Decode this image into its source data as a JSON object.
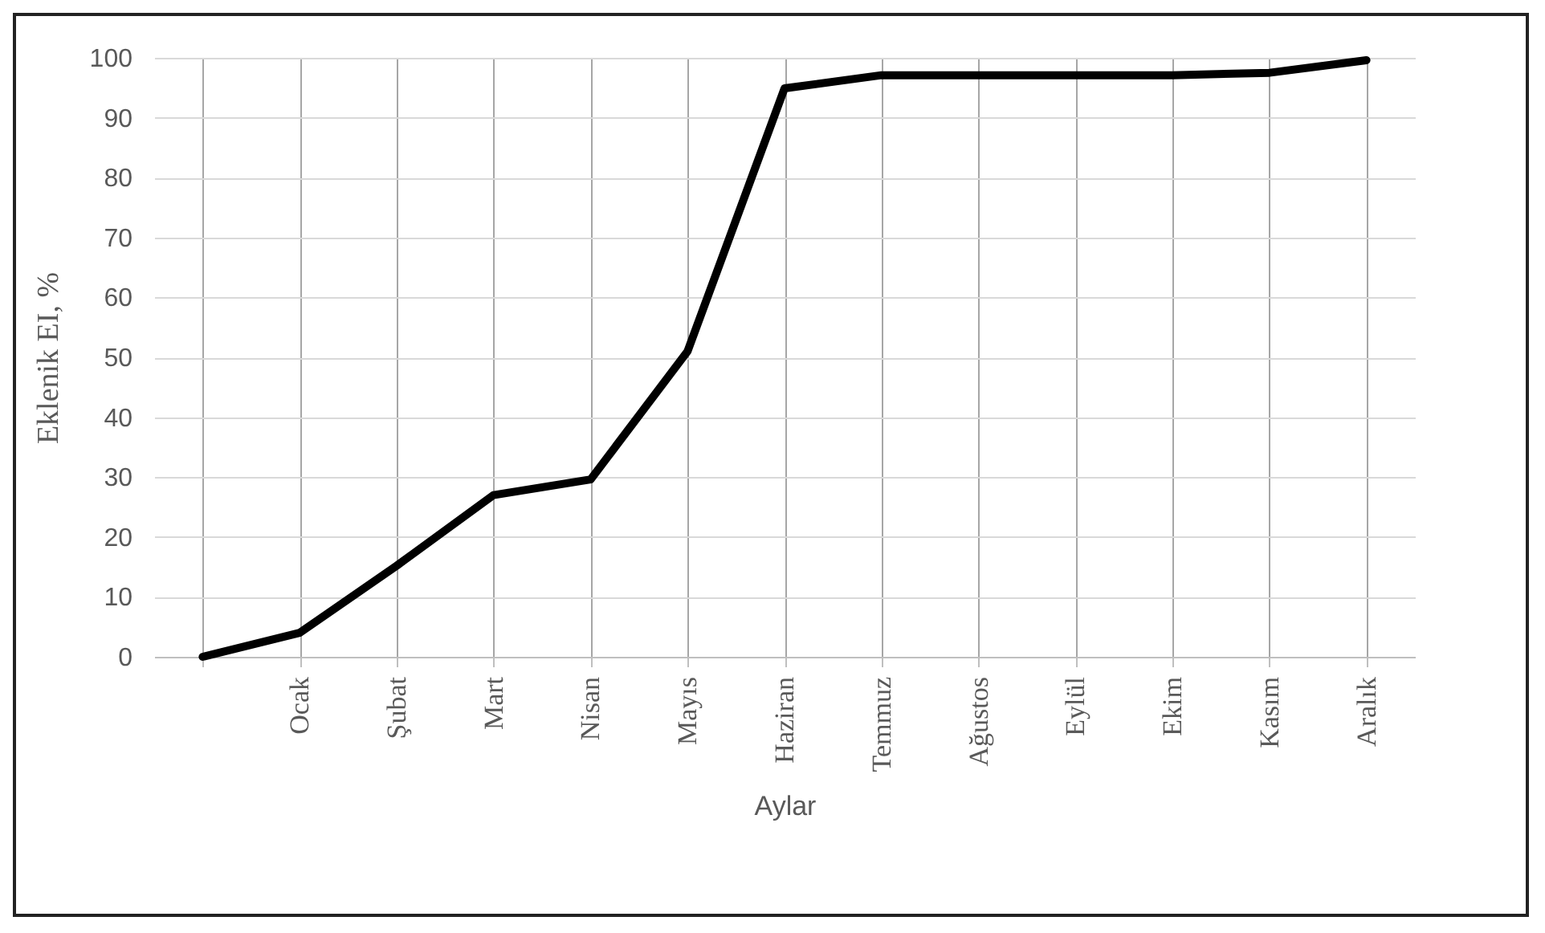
{
  "chart_data": {
    "type": "line",
    "xlabel": "Aylar",
    "ylabel": "Eklenik EI, %",
    "categories": [
      null,
      "Ocak",
      "Şubat",
      "Mart",
      "Nisan",
      "Mayıs",
      "Haziran",
      "Temmuz",
      "Ağustos",
      "Eylül",
      "Ekim",
      "Kasım",
      "Aralık"
    ],
    "series": [
      {
        "color": "#000000",
        "values": [
          0,
          4.0,
          15.2,
          27.0,
          29.6,
          51.0,
          94.9,
          97.1,
          97.1,
          97.1,
          97.1,
          97.5,
          99.6
        ]
      }
    ],
    "ylim": [
      0,
      100
    ],
    "yticks": [
      0,
      10,
      20,
      30,
      40,
      50,
      60,
      70,
      80,
      90,
      100
    ],
    "grid": true,
    "marker": "none",
    "line_style": "solid"
  }
}
